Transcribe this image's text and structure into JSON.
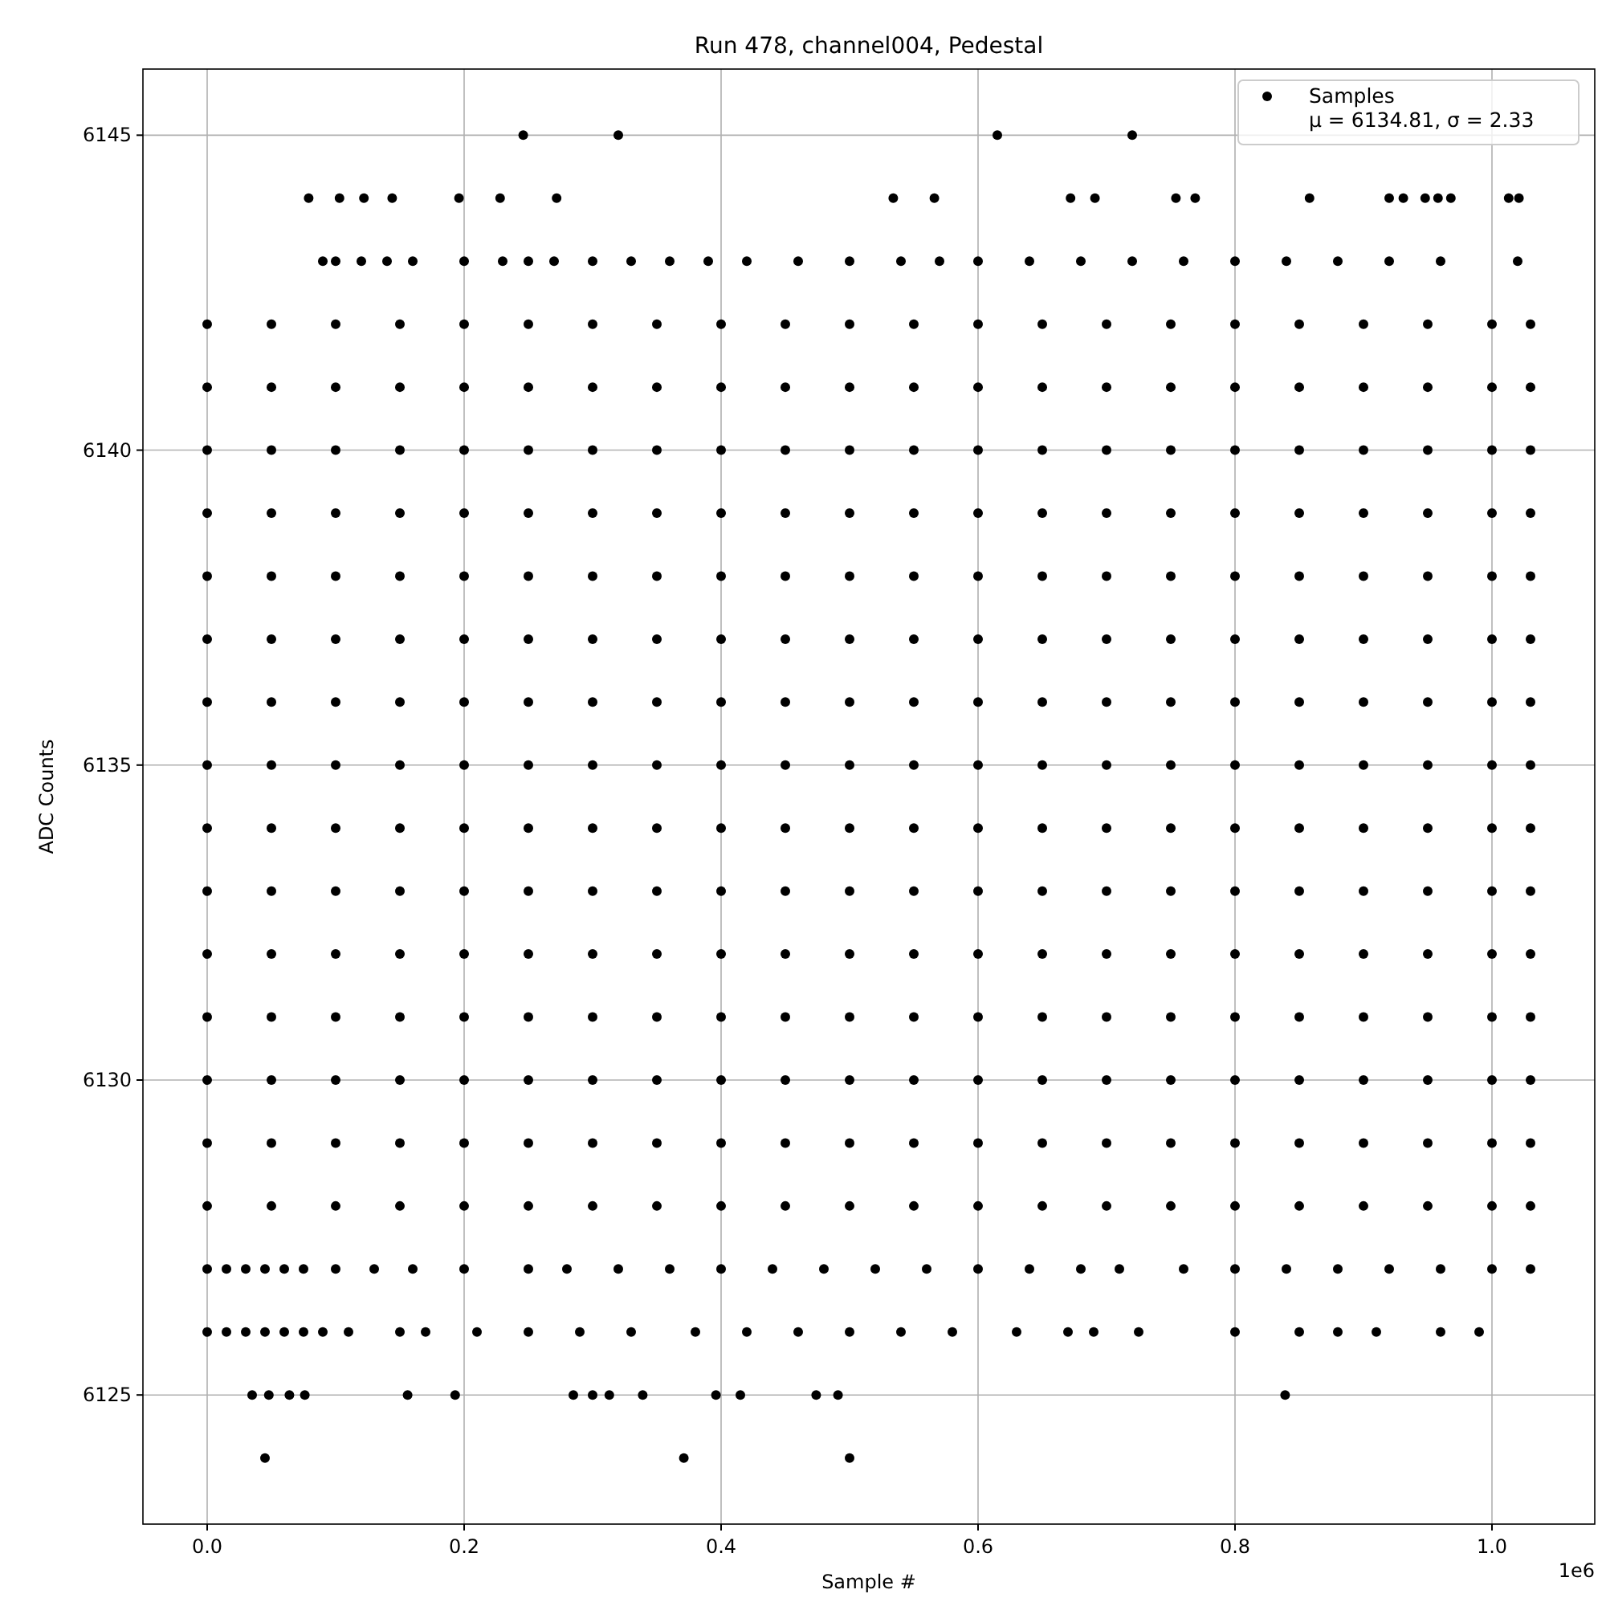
{
  "chart_data": {
    "type": "scatter",
    "title": "Run 478, channel004, Pedestal",
    "xlabel": "Sample #",
    "ylabel": "ADC Counts",
    "annotations": [
      "1e6"
    ],
    "xlim": [
      -0.05,
      1.08
    ],
    "xticks": [
      {
        "value": 0,
        "label": "0.0"
      },
      0.2,
      0.4,
      0.6,
      0.8,
      {
        "value": 1,
        "label": "1.0"
      }
    ],
    "ylim": [
      6122.95,
      6146.05
    ],
    "yticks": [
      6125,
      6130,
      6135,
      6140,
      6145
    ],
    "grid": true,
    "legend": "top right",
    "marker": "circle",
    "series": [
      {
        "name": "Samples\nμ = 6134.81, σ = 2.33",
        "color": "#000000",
        "x": [
          0.246,
          0.32,
          0.615,
          0.72,
          0.079,
          0.103,
          0.122,
          0.144,
          0.196,
          0.228,
          0.272,
          0.534,
          0.566,
          0.672,
          0.691,
          0.754,
          0.769,
          0.858,
          0.92,
          0.931,
          0.948,
          0.958,
          0.968,
          1.013,
          1.021,
          0.09,
          0.1,
          0.12,
          0.14,
          0.16,
          0.2,
          0.23,
          0.25,
          0.27,
          0.3,
          0.33,
          0.36,
          0.39,
          0.42,
          0.46,
          0.5,
          0.54,
          0.57,
          0.6,
          0.64,
          0.68,
          0.72,
          0.76,
          0.8,
          0.84,
          0.88,
          0.92,
          0.96,
          1.02,
          0,
          0.05,
          0.1,
          0.15,
          0.2,
          0.25,
          0.3,
          0.35,
          0.4,
          0.45,
          0.5,
          0.55,
          0.6,
          0.65,
          0.7,
          0.75,
          0.8,
          0.85,
          0.9,
          0.95,
          1,
          1.03,
          0,
          0.05,
          0.1,
          0.15,
          0.2,
          0.25,
          0.3,
          0.35,
          0.4,
          0.45,
          0.5,
          0.55,
          0.6,
          0.65,
          0.7,
          0.75,
          0.8,
          0.85,
          0.9,
          0.95,
          1,
          1.03,
          0,
          0.05,
          0.1,
          0.15,
          0.2,
          0.25,
          0.3,
          0.35,
          0.4,
          0.45,
          0.5,
          0.55,
          0.6,
          0.65,
          0.7,
          0.75,
          0.8,
          0.85,
          0.9,
          0.95,
          1,
          1.03,
          0,
          0.05,
          0.1,
          0.15,
          0.2,
          0.25,
          0.3,
          0.35,
          0.4,
          0.45,
          0.5,
          0.55,
          0.6,
          0.65,
          0.7,
          0.75,
          0.8,
          0.85,
          0.9,
          0.95,
          1,
          1.03,
          0,
          0.05,
          0.1,
          0.15,
          0.2,
          0.25,
          0.3,
          0.35,
          0.4,
          0.45,
          0.5,
          0.55,
          0.6,
          0.65,
          0.7,
          0.75,
          0.8,
          0.85,
          0.9,
          0.95,
          1,
          1.03,
          0,
          0.05,
          0.1,
          0.15,
          0.2,
          0.25,
          0.3,
          0.35,
          0.4,
          0.45,
          0.5,
          0.55,
          0.6,
          0.65,
          0.7,
          0.75,
          0.8,
          0.85,
          0.9,
          0.95,
          1,
          1.03,
          0,
          0.05,
          0.1,
          0.15,
          0.2,
          0.25,
          0.3,
          0.35,
          0.4,
          0.45,
          0.5,
          0.55,
          0.6,
          0.65,
          0.7,
          0.75,
          0.8,
          0.85,
          0.9,
          0.95,
          1,
          1.03,
          0,
          0.05,
          0.1,
          0.15,
          0.2,
          0.25,
          0.3,
          0.35,
          0.4,
          0.45,
          0.5,
          0.55,
          0.6,
          0.65,
          0.7,
          0.75,
          0.8,
          0.85,
          0.9,
          0.95,
          1,
          1.03,
          0,
          0.05,
          0.1,
          0.15,
          0.2,
          0.25,
          0.3,
          0.35,
          0.4,
          0.45,
          0.5,
          0.55,
          0.6,
          0.65,
          0.7,
          0.75,
          0.8,
          0.85,
          0.9,
          0.95,
          1,
          1.03,
          0,
          0.05,
          0.1,
          0.15,
          0.2,
          0.25,
          0.3,
          0.35,
          0.4,
          0.45,
          0.5,
          0.55,
          0.6,
          0.65,
          0.7,
          0.75,
          0.8,
          0.85,
          0.9,
          0.95,
          1,
          1.03,
          0,
          0.05,
          0.1,
          0.15,
          0.2,
          0.25,
          0.3,
          0.35,
          0.4,
          0.45,
          0.5,
          0.55,
          0.6,
          0.65,
          0.7,
          0.75,
          0.8,
          0.85,
          0.9,
          0.95,
          1,
          1.03,
          0,
          0.05,
          0.1,
          0.15,
          0.2,
          0.25,
          0.3,
          0.35,
          0.4,
          0.45,
          0.5,
          0.55,
          0.6,
          0.65,
          0.7,
          0.75,
          0.8,
          0.85,
          0.9,
          0.95,
          1,
          1.03,
          0,
          0.05,
          0.1,
          0.15,
          0.2,
          0.25,
          0.3,
          0.35,
          0.4,
          0.45,
          0.5,
          0.55,
          0.6,
          0.65,
          0.7,
          0.75,
          0.8,
          0.85,
          0.9,
          0.95,
          1,
          1.03,
          0,
          0.05,
          0.1,
          0.15,
          0.2,
          0.25,
          0.3,
          0.35,
          0.4,
          0.45,
          0.5,
          0.55,
          0.6,
          0.65,
          0.7,
          0.75,
          0.8,
          0.85,
          0.9,
          0.95,
          1,
          1.03,
          0,
          0.05,
          0.1,
          0.15,
          0.2,
          0.25,
          0.3,
          0.35,
          0.4,
          0.45,
          0.5,
          0.55,
          0.6,
          0.65,
          0.7,
          0.75,
          0.8,
          0.85,
          0.9,
          0.95,
          1,
          1.03,
          0,
          0.015,
          0.03,
          0.045,
          0.06,
          0.075,
          0.1,
          0.13,
          0.16,
          0.2,
          0.25,
          0.28,
          0.32,
          0.36,
          0.4,
          0.44,
          0.48,
          0.52,
          0.56,
          0.6,
          0.64,
          0.68,
          0.71,
          0.76,
          0.8,
          0.84,
          0.88,
          0.92,
          0.96,
          1,
          1.03,
          0,
          0.015,
          0.03,
          0.045,
          0.06,
          0.075,
          0.09,
          0.11,
          0.15,
          0.17,
          0.21,
          0.25,
          0.29,
          0.33,
          0.38,
          0.42,
          0.46,
          0.5,
          0.54,
          0.58,
          0.63,
          0.67,
          0.69,
          0.725,
          0.8,
          0.85,
          0.88,
          0.91,
          0.96,
          0.99,
          0.035,
          0.048,
          0.064,
          0.076,
          0.156,
          0.193,
          0.285,
          0.3,
          0.313,
          0.339,
          0.396,
          0.415,
          0.474,
          0.491,
          0.839,
          0.045,
          0.371,
          0.5
        ],
        "values": [
          6145,
          6145,
          6145,
          6145,
          6144,
          6144,
          6144,
          6144,
          6144,
          6144,
          6144,
          6144,
          6144,
          6144,
          6144,
          6144,
          6144,
          6144,
          6144,
          6144,
          6144,
          6144,
          6144,
          6144,
          6144,
          6143,
          6143,
          6143,
          6143,
          6143,
          6143,
          6143,
          6143,
          6143,
          6143,
          6143,
          6143,
          6143,
          6143,
          6143,
          6143,
          6143,
          6143,
          6143,
          6143,
          6143,
          6143,
          6143,
          6143,
          6143,
          6143,
          6143,
          6143,
          6143,
          6142,
          6142,
          6142,
          6142,
          6142,
          6142,
          6142,
          6142,
          6142,
          6142,
          6142,
          6142,
          6142,
          6142,
          6142,
          6142,
          6142,
          6142,
          6142,
          6142,
          6142,
          6142,
          6141,
          6141,
          6141,
          6141,
          6141,
          6141,
          6141,
          6141,
          6141,
          6141,
          6141,
          6141,
          6141,
          6141,
          6141,
          6141,
          6141,
          6141,
          6141,
          6141,
          6141,
          6141,
          6140,
          6140,
          6140,
          6140,
          6140,
          6140,
          6140,
          6140,
          6140,
          6140,
          6140,
          6140,
          6140,
          6140,
          6140,
          6140,
          6140,
          6140,
          6140,
          6140,
          6140,
          6140,
          6139,
          6139,
          6139,
          6139,
          6139,
          6139,
          6139,
          6139,
          6139,
          6139,
          6139,
          6139,
          6139,
          6139,
          6139,
          6139,
          6139,
          6139,
          6139,
          6139,
          6139,
          6139,
          6138,
          6138,
          6138,
          6138,
          6138,
          6138,
          6138,
          6138,
          6138,
          6138,
          6138,
          6138,
          6138,
          6138,
          6138,
          6138,
          6138,
          6138,
          6138,
          6138,
          6138,
          6138,
          6137,
          6137,
          6137,
          6137,
          6137,
          6137,
          6137,
          6137,
          6137,
          6137,
          6137,
          6137,
          6137,
          6137,
          6137,
          6137,
          6137,
          6137,
          6137,
          6137,
          6137,
          6137,
          6136,
          6136,
          6136,
          6136,
          6136,
          6136,
          6136,
          6136,
          6136,
          6136,
          6136,
          6136,
          6136,
          6136,
          6136,
          6136,
          6136,
          6136,
          6136,
          6136,
          6136,
          6136,
          6135,
          6135,
          6135,
          6135,
          6135,
          6135,
          6135,
          6135,
          6135,
          6135,
          6135,
          6135,
          6135,
          6135,
          6135,
          6135,
          6135,
          6135,
          6135,
          6135,
          6135,
          6135,
          6134,
          6134,
          6134,
          6134,
          6134,
          6134,
          6134,
          6134,
          6134,
          6134,
          6134,
          6134,
          6134,
          6134,
          6134,
          6134,
          6134,
          6134,
          6134,
          6134,
          6134,
          6134,
          6133,
          6133,
          6133,
          6133,
          6133,
          6133,
          6133,
          6133,
          6133,
          6133,
          6133,
          6133,
          6133,
          6133,
          6133,
          6133,
          6133,
          6133,
          6133,
          6133,
          6133,
          6133,
          6132,
          6132,
          6132,
          6132,
          6132,
          6132,
          6132,
          6132,
          6132,
          6132,
          6132,
          6132,
          6132,
          6132,
          6132,
          6132,
          6132,
          6132,
          6132,
          6132,
          6132,
          6132,
          6131,
          6131,
          6131,
          6131,
          6131,
          6131,
          6131,
          6131,
          6131,
          6131,
          6131,
          6131,
          6131,
          6131,
          6131,
          6131,
          6131,
          6131,
          6131,
          6131,
          6131,
          6131,
          6130,
          6130,
          6130,
          6130,
          6130,
          6130,
          6130,
          6130,
          6130,
          6130,
          6130,
          6130,
          6130,
          6130,
          6130,
          6130,
          6130,
          6130,
          6130,
          6130,
          6130,
          6130,
          6129,
          6129,
          6129,
          6129,
          6129,
          6129,
          6129,
          6129,
          6129,
          6129,
          6129,
          6129,
          6129,
          6129,
          6129,
          6129,
          6129,
          6129,
          6129,
          6129,
          6129,
          6129,
          6128,
          6128,
          6128,
          6128,
          6128,
          6128,
          6128,
          6128,
          6128,
          6128,
          6128,
          6128,
          6128,
          6128,
          6128,
          6128,
          6128,
          6128,
          6128,
          6128,
          6128,
          6128,
          6127,
          6127,
          6127,
          6127,
          6127,
          6127,
          6127,
          6127,
          6127,
          6127,
          6127,
          6127,
          6127,
          6127,
          6127,
          6127,
          6127,
          6127,
          6127,
          6127,
          6127,
          6127,
          6127,
          6127,
          6127,
          6127,
          6127,
          6127,
          6127,
          6127,
          6127,
          6126,
          6126,
          6126,
          6126,
          6126,
          6126,
          6126,
          6126,
          6126,
          6126,
          6126,
          6126,
          6126,
          6126,
          6126,
          6126,
          6126,
          6126,
          6126,
          6126,
          6126,
          6126,
          6126,
          6126,
          6126,
          6126,
          6126,
          6126,
          6126,
          6126,
          6125,
          6125,
          6125,
          6125,
          6125,
          6125,
          6125,
          6125,
          6125,
          6125,
          6125,
          6125,
          6125,
          6125,
          6125,
          6124,
          6124,
          6124
        ]
      }
    ]
  }
}
